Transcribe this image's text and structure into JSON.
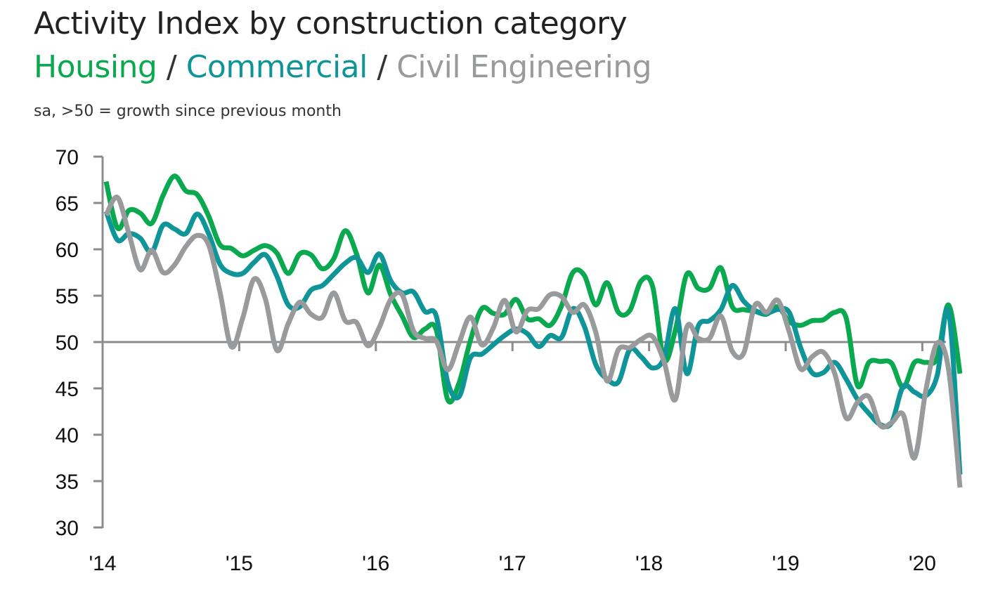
{
  "title": "Activity Index by construction category",
  "legend": {
    "housing": "Housing",
    "commercial": "Commercial",
    "civil": "Civil Engineering",
    "separator": "/"
  },
  "note": "sa, >50 = growth since previous month",
  "colors": {
    "housing": "#0aa84f",
    "commercial": "#0f9598",
    "civil": "#999a9c",
    "axis": "#8c8c8c",
    "text": "#222222"
  },
  "chart_data": {
    "type": "line",
    "title": "Activity Index by construction category",
    "subtitle": "Housing / Commercial / Civil Engineering",
    "note": "sa, >50 = growth since previous month",
    "xlabel": "",
    "ylabel": "",
    "ylim": [
      30,
      70
    ],
    "yticks": [
      30,
      35,
      40,
      45,
      50,
      55,
      60,
      65,
      70
    ],
    "ytick_labels": [
      "30",
      "35",
      "40",
      "45",
      "50",
      "55",
      "60",
      "65",
      "70"
    ],
    "x_start": "2014-01",
    "x_end": "2020-03",
    "xtick_labels": [
      "'14",
      "'15",
      "'16",
      "'17",
      "'18",
      "'19",
      "'20"
    ],
    "reference_line": 50,
    "grid": false,
    "series": [
      {
        "name": "Housing",
        "color": "#0aa84f",
        "values": [
          67.3,
          62.3,
          64.2,
          63.9,
          62.8,
          65.8,
          67.9,
          66.3,
          65.9,
          63.6,
          60.5,
          60.1,
          59.3,
          59.9,
          60.4,
          59.6,
          57.4,
          59.5,
          59.4,
          57.9,
          59.0,
          62.0,
          59.5,
          55.3,
          58.3,
          55.1,
          52.8,
          50.5,
          51.4,
          51.3,
          43.8,
          45.6,
          50.2,
          53.6,
          53.1,
          53.0,
          54.6,
          52.5,
          52.5,
          51.8,
          53.9,
          57.5,
          57.2,
          54.0,
          56.4,
          53.2,
          53.4,
          56.6,
          56.0,
          48.1,
          51.3,
          57.3,
          55.8,
          55.8,
          58.0,
          53.8,
          53.5,
          53.3,
          53.0,
          53.8,
          52.2,
          51.8,
          52.3,
          52.4,
          53.2,
          52.6,
          45.3,
          47.8,
          47.9,
          47.7,
          45.1,
          47.8,
          47.8,
          48.3,
          54.0,
          46.6
        ]
      },
      {
        "name": "Commercial",
        "color": "#0f9598",
        "values": [
          64.1,
          61.0,
          61.7,
          61.2,
          59.7,
          62.6,
          62.2,
          61.7,
          63.8,
          61.7,
          58.4,
          57.4,
          57.4,
          58.6,
          59.4,
          57.1,
          54.0,
          53.8,
          55.6,
          56.1,
          57.3,
          58.5,
          59.1,
          57.5,
          59.5,
          56.6,
          55.3,
          55.4,
          53.3,
          52.8,
          45.7,
          44.1,
          48.3,
          48.7,
          49.7,
          50.7,
          51.4,
          50.9,
          49.5,
          50.7,
          50.5,
          53.6,
          51.7,
          47.6,
          46.0,
          45.7,
          49.2,
          48.4,
          47.2,
          48.3,
          53.6,
          46.6,
          51.7,
          52.3,
          53.5,
          56.1,
          54.4,
          53.4,
          53.1,
          53.5,
          53.2,
          49.4,
          46.7,
          46.7,
          47.8,
          46.0,
          43.8,
          42.3,
          41.1,
          41.3,
          45.2,
          44.6,
          44.2,
          46.4,
          53.3,
          35.7
        ]
      },
      {
        "name": "Civil Engineering",
        "color": "#999a9c",
        "values": [
          63.7,
          65.6,
          61.7,
          57.8,
          59.9,
          57.5,
          58.3,
          60.3,
          61.5,
          60.5,
          55.4,
          49.5,
          52.6,
          56.8,
          54.6,
          49.1,
          52.0,
          54.3,
          53.0,
          52.7,
          55.3,
          52.3,
          52.1,
          49.6,
          51.6,
          54.6,
          55.1,
          51.2,
          50.4,
          50.1,
          47.0,
          49.9,
          52.7,
          49.7,
          51.5,
          54.5,
          51.1,
          53.4,
          53.6,
          55.1,
          54.9,
          53.2,
          54.0,
          51.1,
          45.8,
          49.2,
          49.4,
          50.3,
          50.6,
          47.9,
          43.8,
          51.6,
          50.4,
          50.4,
          52.8,
          49.0,
          48.8,
          54.0,
          53.2,
          54.5,
          51.1,
          47.1,
          48.4,
          48.9,
          46.6,
          41.8,
          43.5,
          44.1,
          41.0,
          41.3,
          42.2,
          37.5,
          44.8,
          49.9,
          47.0,
          34.3
        ]
      }
    ]
  }
}
